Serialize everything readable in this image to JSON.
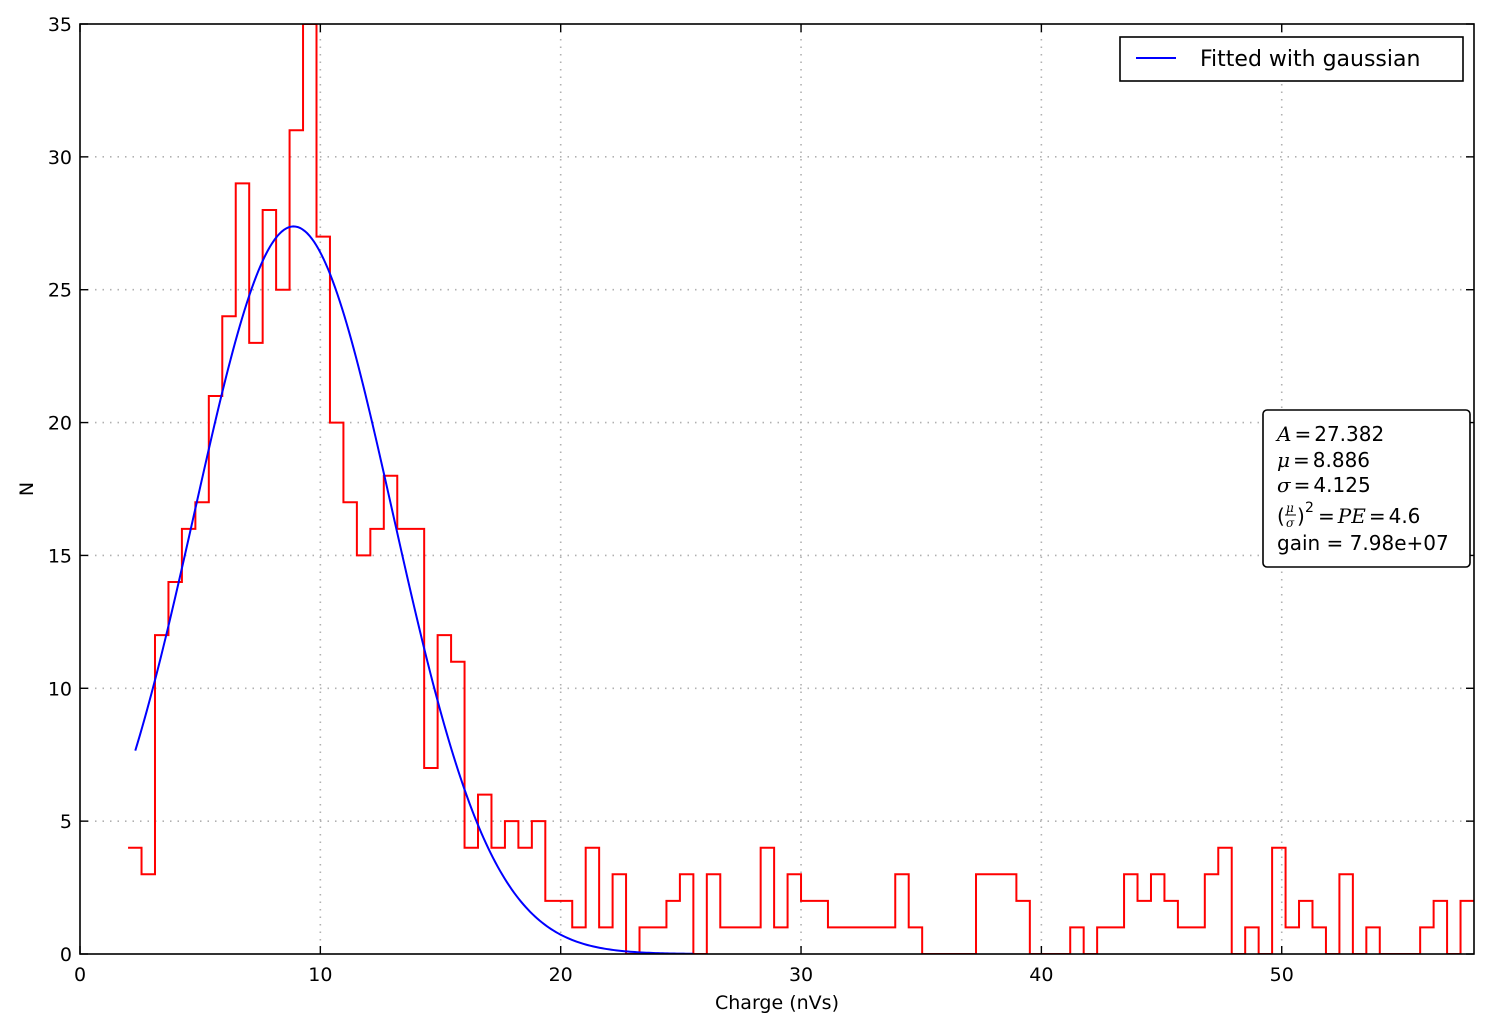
{
  "chart_data": {
    "type": "line",
    "title": "",
    "xlabel": "Charge (nVs)",
    "ylabel": "N",
    "xlim": [
      0,
      58
    ],
    "ylim": [
      0,
      35
    ],
    "x_ticks": [
      0,
      10,
      20,
      30,
      40,
      50
    ],
    "y_ticks": [
      0,
      5,
      10,
      15,
      20,
      25,
      30,
      35
    ],
    "grid": true,
    "legend_position": "top-right",
    "colors": {
      "histogram": "#ff0000",
      "fit": "#0000ff",
      "text": "#000000",
      "grid": "#b0b0b0"
    },
    "series": [
      {
        "name": "",
        "style": "step-histogram",
        "color": "#ff0000",
        "bin_edges": [
          2.0,
          2.56,
          3.12,
          3.68,
          4.24,
          4.8,
          5.36,
          5.92,
          6.48,
          7.04,
          7.6,
          8.16,
          8.72,
          9.28,
          9.84,
          10.4,
          10.96,
          11.52,
          12.08,
          12.64,
          13.2,
          13.76,
          14.32,
          14.88,
          15.44,
          16.0,
          16.56,
          17.12,
          17.68,
          18.24,
          18.8,
          19.36,
          19.92,
          20.48,
          21.04,
          21.6,
          22.16,
          22.72,
          23.28,
          23.84,
          24.4,
          24.96,
          25.52,
          26.08,
          26.64,
          27.2,
          27.76,
          28.32,
          28.88,
          29.44,
          30.0,
          30.56,
          31.12,
          31.68,
          32.24,
          32.8,
          33.36,
          33.92,
          34.48,
          35.04,
          35.6,
          36.16,
          36.72,
          37.28,
          37.84,
          38.4,
          38.96,
          39.52,
          40.08,
          40.64,
          41.2,
          41.76,
          42.32,
          42.88,
          43.44,
          44.0,
          44.56,
          45.12,
          45.68,
          46.24,
          46.8,
          47.36,
          47.92,
          48.48,
          49.04,
          49.6,
          50.16,
          50.72,
          51.28,
          51.84,
          52.4,
          52.96,
          53.52,
          54.08,
          54.64,
          55.2,
          55.76,
          56.32,
          56.88,
          57.44,
          58.0
        ],
        "counts": [
          4,
          3,
          12,
          14,
          16,
          17,
          21,
          24,
          29,
          23,
          28,
          25,
          31,
          35,
          27,
          20,
          17,
          15,
          16,
          18,
          16,
          16,
          7,
          12,
          11,
          4,
          6,
          4,
          5,
          4,
          5,
          2,
          2,
          1,
          4,
          1,
          3,
          0,
          1,
          1,
          2,
          3,
          0,
          3,
          1,
          1,
          1,
          4,
          1,
          3,
          2,
          2,
          1,
          1,
          1,
          1,
          1,
          3,
          1,
          0,
          0,
          0,
          0,
          3,
          3,
          3,
          2,
          0,
          0,
          0,
          1,
          0,
          1,
          1,
          3,
          2,
          3,
          2,
          1,
          1,
          3,
          4,
          0,
          1,
          0,
          4,
          1,
          2,
          1,
          0,
          3,
          0,
          1,
          0,
          0,
          0,
          1,
          2,
          0,
          2
        ]
      },
      {
        "name": "Fitted with gaussian",
        "style": "line",
        "color": "#0000ff",
        "function": "gaussian",
        "A": 27.382,
        "mu": 8.886,
        "sigma": 4.125,
        "x_range": [
          2.3,
          25.5
        ]
      }
    ],
    "annotation": {
      "lines": [
        "A = 27.382",
        "μ = 8.886",
        "σ = 4.125",
        "(μ/σ)² = PE = 4.6",
        "gain = 7.98e+07"
      ],
      "A_label": "A",
      "A_value": "27.382",
      "mu_label": "μ",
      "mu_value": "8.886",
      "sigma_label": "σ",
      "sigma_value": "4.125",
      "pe_mu": "μ",
      "pe_sigma": "σ",
      "pe_exp": "2",
      "pe_label": "PE",
      "pe_value": "4.6",
      "gain_text": "gain = 7.98e+07",
      "equals": "="
    }
  }
}
